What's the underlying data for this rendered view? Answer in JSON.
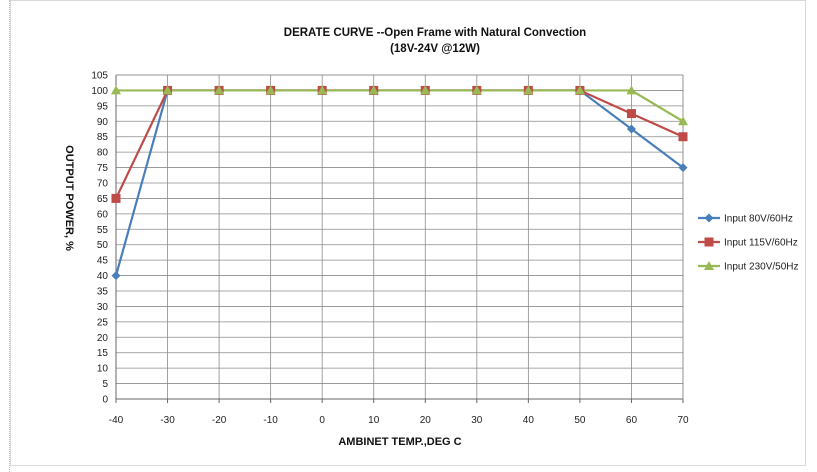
{
  "chart_data": {
    "type": "line",
    "title": "DERATE  CURVE --Open Frame with  Natural Convection",
    "subtitle": "(18V-24V @12W)",
    "xlabel": "AMBINET TEMP.,DEG C",
    "ylabel": "OUTPUT  POWER, %",
    "x": [
      -40,
      -30,
      -20,
      -10,
      0,
      10,
      20,
      30,
      40,
      50,
      60,
      70
    ],
    "x_ticks": [
      "-40",
      "-30",
      "-20",
      "-10",
      "0",
      "10",
      "20",
      "30",
      "40",
      "50",
      "60",
      "70"
    ],
    "ylim": [
      0,
      105
    ],
    "y_ticks": [
      "0",
      "5",
      "10",
      "15",
      "20",
      "25",
      "30",
      "35",
      "40",
      "45",
      "50",
      "55",
      "60",
      "65",
      "70",
      "75",
      "80",
      "85",
      "90",
      "95",
      "100",
      "105"
    ],
    "grid": true,
    "legend_position": "right",
    "series": [
      {
        "name": "Input 80V/60Hz",
        "color": "#4a7ebb",
        "marker": "diamond",
        "values": [
          40,
          100,
          100,
          100,
          100,
          100,
          100,
          100,
          100,
          100,
          87.5,
          75
        ]
      },
      {
        "name": "Input 115V/60Hz",
        "color": "#be4b48",
        "marker": "square",
        "values": [
          65,
          100,
          100,
          100,
          100,
          100,
          100,
          100,
          100,
          100,
          92.5,
          85
        ]
      },
      {
        "name": "Input 230V/50Hz",
        "color": "#98b954",
        "marker": "triangle",
        "values": [
          100,
          100,
          100,
          100,
          100,
          100,
          100,
          100,
          100,
          100,
          100,
          90
        ]
      }
    ]
  }
}
